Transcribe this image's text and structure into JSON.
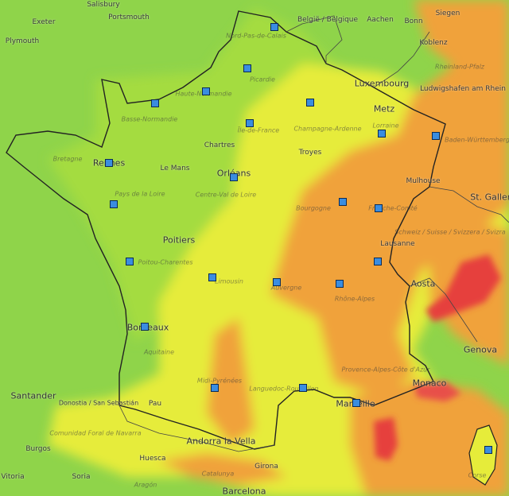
{
  "map": {
    "colors": {
      "sea_green": "#8fd44a",
      "good": "#a8dc3c",
      "moderate": "#e8ee3a",
      "degraded": "#f2a43a",
      "poor": "#e8403c",
      "border": "#222222"
    },
    "cities": [
      {
        "id": "salisbury",
        "label": "Salisbury",
        "size": "small"
      },
      {
        "id": "portsmouth",
        "label": "Portsmouth",
        "size": "small"
      },
      {
        "id": "exeter",
        "label": "Exeter",
        "size": "small"
      },
      {
        "id": "plymouth",
        "label": "Plymouth",
        "size": "small"
      },
      {
        "id": "belgie",
        "label": "België / Belgique",
        "size": "small"
      },
      {
        "id": "aachen",
        "label": "Aachen",
        "size": "small"
      },
      {
        "id": "siegen",
        "label": "Siegen",
        "size": "small"
      },
      {
        "id": "bonn",
        "label": "Bonn",
        "size": "small"
      },
      {
        "id": "koblenz",
        "label": "Koblenz",
        "size": "small"
      },
      {
        "id": "luxembourg",
        "label": "Luxembourg",
        "size": "big"
      },
      {
        "id": "ludwigshafen",
        "label": "Ludwigshafen am Rhein",
        "size": "small"
      },
      {
        "id": "metz",
        "label": "Metz",
        "size": "big"
      },
      {
        "id": "chartres",
        "label": "Chartres",
        "size": "small"
      },
      {
        "id": "troyes",
        "label": "Troyes",
        "size": "small"
      },
      {
        "id": "rennes",
        "label": "Rennes",
        "size": "big"
      },
      {
        "id": "le_mans",
        "label": "Le Mans",
        "size": "small"
      },
      {
        "id": "orleans",
        "label": "Orléans",
        "size": "big"
      },
      {
        "id": "mulhouse",
        "label": "Mulhouse",
        "size": "small"
      },
      {
        "id": "st_gallen",
        "label": "St. Gallen",
        "size": "big"
      },
      {
        "id": "poitiers",
        "label": "Poitiers",
        "size": "big"
      },
      {
        "id": "lausanne",
        "label": "Lausanne",
        "size": "small"
      },
      {
        "id": "aosta",
        "label": "Aosta",
        "size": "big"
      },
      {
        "id": "bordeaux",
        "label": "Bordeaux",
        "size": "big"
      },
      {
        "id": "genova",
        "label": "Genova",
        "size": "big"
      },
      {
        "id": "monaco",
        "label": "Monaco",
        "size": "big"
      },
      {
        "id": "santander",
        "label": "Santander",
        "size": "big"
      },
      {
        "id": "donostia",
        "label": "Donostia / San Sebastián",
        "size": "small"
      },
      {
        "id": "pau",
        "label": "Pau",
        "size": "small"
      },
      {
        "id": "marseille",
        "label": "Marseille",
        "size": "big"
      },
      {
        "id": "andorra",
        "label": "Andorra la Vella",
        "size": "big"
      },
      {
        "id": "burgos",
        "label": "Burgos",
        "size": "small"
      },
      {
        "id": "huesca",
        "label": "Huesca",
        "size": "small"
      },
      {
        "id": "girona",
        "label": "Girona",
        "size": "small"
      },
      {
        "id": "soria",
        "label": "Soria",
        "size": "small"
      },
      {
        "id": "barcelona",
        "label": "Barcelona",
        "size": "big"
      },
      {
        "id": "vitoria",
        "label": "Vitoria",
        "size": "small"
      }
    ],
    "regions": [
      {
        "id": "nord",
        "label": "Nord-Pas-de-Calais"
      },
      {
        "id": "picardie",
        "label": "Picardie"
      },
      {
        "id": "haute_normandie",
        "label": "Haute-Normandie"
      },
      {
        "id": "basse_normandie",
        "label": "Basse-Normandie"
      },
      {
        "id": "ile_de_france",
        "label": "Île-de-France"
      },
      {
        "id": "champagne",
        "label": "Champagne-Ardenne"
      },
      {
        "id": "lorraine",
        "label": "Lorraine"
      },
      {
        "id": "bretagne",
        "label": "Bretagne"
      },
      {
        "id": "pays_de_loire",
        "label": "Pays de la Loire"
      },
      {
        "id": "centre",
        "label": "Centre-Val de Loire"
      },
      {
        "id": "bourgogne",
        "label": "Bourgogne"
      },
      {
        "id": "franche_comte",
        "label": "Franche-Comté"
      },
      {
        "id": "poitou",
        "label": "Poitou-Charentes"
      },
      {
        "id": "limousin",
        "label": "Limousin"
      },
      {
        "id": "auvergne",
        "label": "Auvergne"
      },
      {
        "id": "rhone_alpes",
        "label": "Rhône-Alpes"
      },
      {
        "id": "aquitaine",
        "label": "Aquitaine"
      },
      {
        "id": "midi_pyrenees",
        "label": "Midi-Pyrénées"
      },
      {
        "id": "languedoc",
        "label": "Languedoc-Roussillon"
      },
      {
        "id": "paca",
        "label": "Provence-Alpes-Côte d'Azur"
      },
      {
        "id": "rheinland",
        "label": "Rheinland-Pfalz"
      },
      {
        "id": "baden",
        "label": "Baden-Württemberg"
      },
      {
        "id": "schweiz",
        "label": "Schweiz / Suisse / Svizzera / Svizra"
      },
      {
        "id": "navarra",
        "label": "Comunidad Foral de Navarra"
      },
      {
        "id": "aragon",
        "label": "Aragón"
      },
      {
        "id": "catalunya",
        "label": "Catalunya"
      },
      {
        "id": "corse",
        "label": "Corse"
      }
    ]
  }
}
